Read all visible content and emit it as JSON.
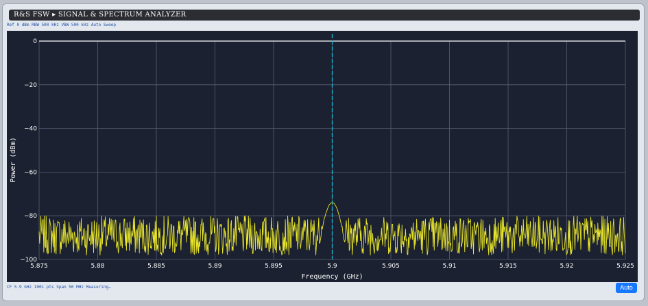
{
  "window": {
    "title": "R&S FSW ▸ SIGNAL & SPECTRUM ANALYZER",
    "params": "Ref 0 dBm RBW 500 kHz VBW 500 kHz Auto Sweep",
    "status": "CF 5.9 GHz 1001 pts Span 50 MHz Measuring…",
    "auto_label": "Auto"
  },
  "colors": {
    "trace": "#e8e52a",
    "marker": "#17b7d4",
    "grid": "#5a6075",
    "background": "#1b2130",
    "ref_line": "#ffffff"
  },
  "chart_data": {
    "type": "line",
    "xlabel": "Frequency (GHz)",
    "ylabel": "Power (dBm)",
    "xlim": [
      5.875,
      5.925
    ],
    "ylim": [
      -100,
      0
    ],
    "x_ticks": [
      "5.875",
      "5.88",
      "5.885",
      "5.89",
      "5.895",
      "5.9",
      "5.905",
      "5.91",
      "5.915",
      "5.92",
      "5.925"
    ],
    "x_tick_values": [
      5.875,
      5.88,
      5.885,
      5.89,
      5.895,
      5.9,
      5.905,
      5.91,
      5.915,
      5.92,
      5.925
    ],
    "y_ticks": [
      "0",
      "−20",
      "−40",
      "−60",
      "−80",
      "−100"
    ],
    "y_tick_values": [
      0,
      -20,
      -40,
      -60,
      -80,
      -100
    ],
    "grid": true,
    "reference_line_dbm": 0,
    "center_frequency_ghz": 5.9,
    "num_points": 1001,
    "peak_dbm": -74,
    "noise_floor_range_dbm": [
      -98,
      -80
    ],
    "series": [
      {
        "x": [
          5.875,
          5.8775,
          5.88,
          5.8825,
          5.885,
          5.8875,
          5.89,
          5.8925,
          5.895,
          5.8975,
          5.899,
          5.8995,
          5.9,
          5.9005,
          5.901,
          5.9025,
          5.905,
          5.9075,
          5.91,
          5.9125,
          5.915,
          5.9175,
          5.92,
          5.9225,
          5.925
        ],
        "values": [
          -87,
          -89,
          -88,
          -90,
          -87,
          -89,
          -88,
          -90,
          -89,
          -88,
          -80,
          -75,
          -74,
          -75,
          -80,
          -89,
          -88,
          -90,
          -87,
          -89,
          -88,
          -90,
          -87,
          -89,
          -88
        ]
      }
    ]
  }
}
